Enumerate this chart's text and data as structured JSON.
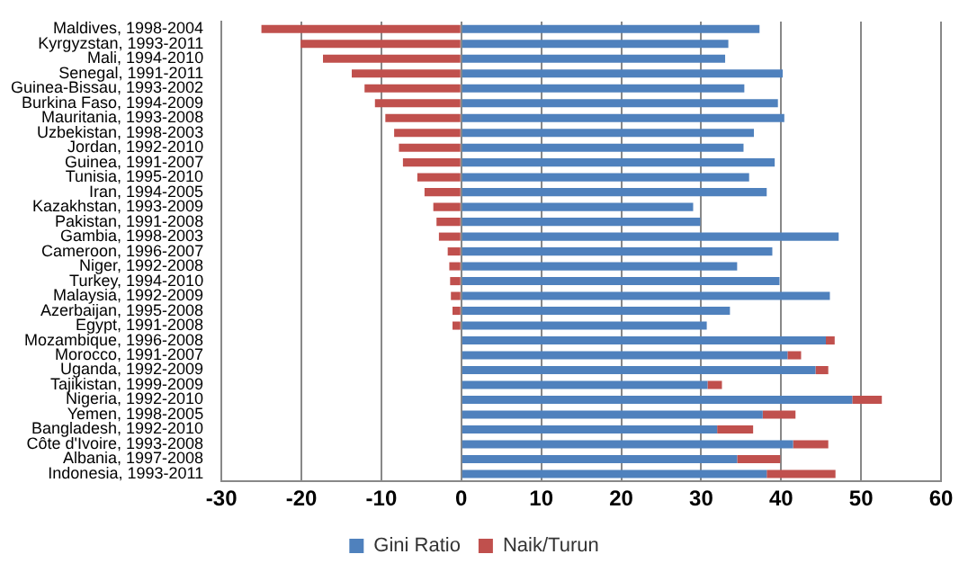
{
  "chart_data": {
    "type": "bar",
    "orientation": "horizontal",
    "stacked": true,
    "categories": [
      "Maldives, 1998-2004",
      "Kyrgyzstan, 1993-2011",
      "Mali, 1994-2010",
      "Senegal, 1991-2011",
      "Guinea-Bissau, 1993-2002",
      "Burkina Faso, 1994-2009",
      "Mauritania, 1993-2008",
      "Uzbekistan, 1998-2003",
      "Jordan, 1992-2010",
      "Guinea, 1991-2007",
      "Tunisia, 1995-2010",
      "Iran, 1994-2005",
      "Kazakhstan, 1993-2009",
      "Pakistan, 1991-2008",
      "Gambia, 1998-2003",
      "Cameroon, 1996-2007",
      "Niger, 1992-2008",
      "Turkey, 1994-2010",
      "Malaysia, 1992-2009",
      "Azerbaijan, 1995-2008",
      "Egypt, 1991-2008",
      "Mozambique, 1996-2008",
      "Morocco, 1991-2007",
      "Uganda, 1992-2009",
      "Tajikistan, 1999-2009",
      "Nigeria, 1992-2010",
      "Yemen, 1998-2005",
      "Bangladesh, 1992-2010",
      "Côte d'Ivoire, 1993-2008",
      "Albania, 1997-2008",
      "Indonesia, 1993-2011"
    ],
    "series": [
      {
        "name": "Gini Ratio",
        "color": "#4f81bd",
        "values": [
          37.3,
          33.4,
          33.0,
          40.2,
          35.4,
          39.6,
          40.4,
          36.6,
          35.3,
          39.2,
          36.0,
          38.2,
          29.0,
          29.9,
          47.2,
          38.9,
          34.5,
          39.8,
          46.1,
          33.6,
          30.7,
          45.6,
          40.8,
          44.3,
          30.8,
          48.9,
          37.7,
          32.0,
          41.5,
          34.5,
          38.2
        ]
      },
      {
        "name": "Naik/Turun",
        "color": "#c0504d",
        "values": [
          -25.0,
          -20.1,
          -17.3,
          -13.7,
          -12.1,
          -10.8,
          -9.5,
          -8.4,
          -7.8,
          -7.3,
          -5.5,
          -4.6,
          -3.5,
          -3.1,
          -2.8,
          -1.7,
          -1.5,
          -1.4,
          -1.3,
          -1.1,
          -1.1,
          1.1,
          1.7,
          1.6,
          1.8,
          3.7,
          4.1,
          4.5,
          4.4,
          5.4,
          8.6
        ]
      }
    ],
    "xlim": [
      -30,
      60
    ],
    "xticks": [
      -30,
      -20,
      -10,
      0,
      10,
      20,
      30,
      40,
      50,
      60
    ],
    "grid": "x",
    "legend": "bottom"
  }
}
